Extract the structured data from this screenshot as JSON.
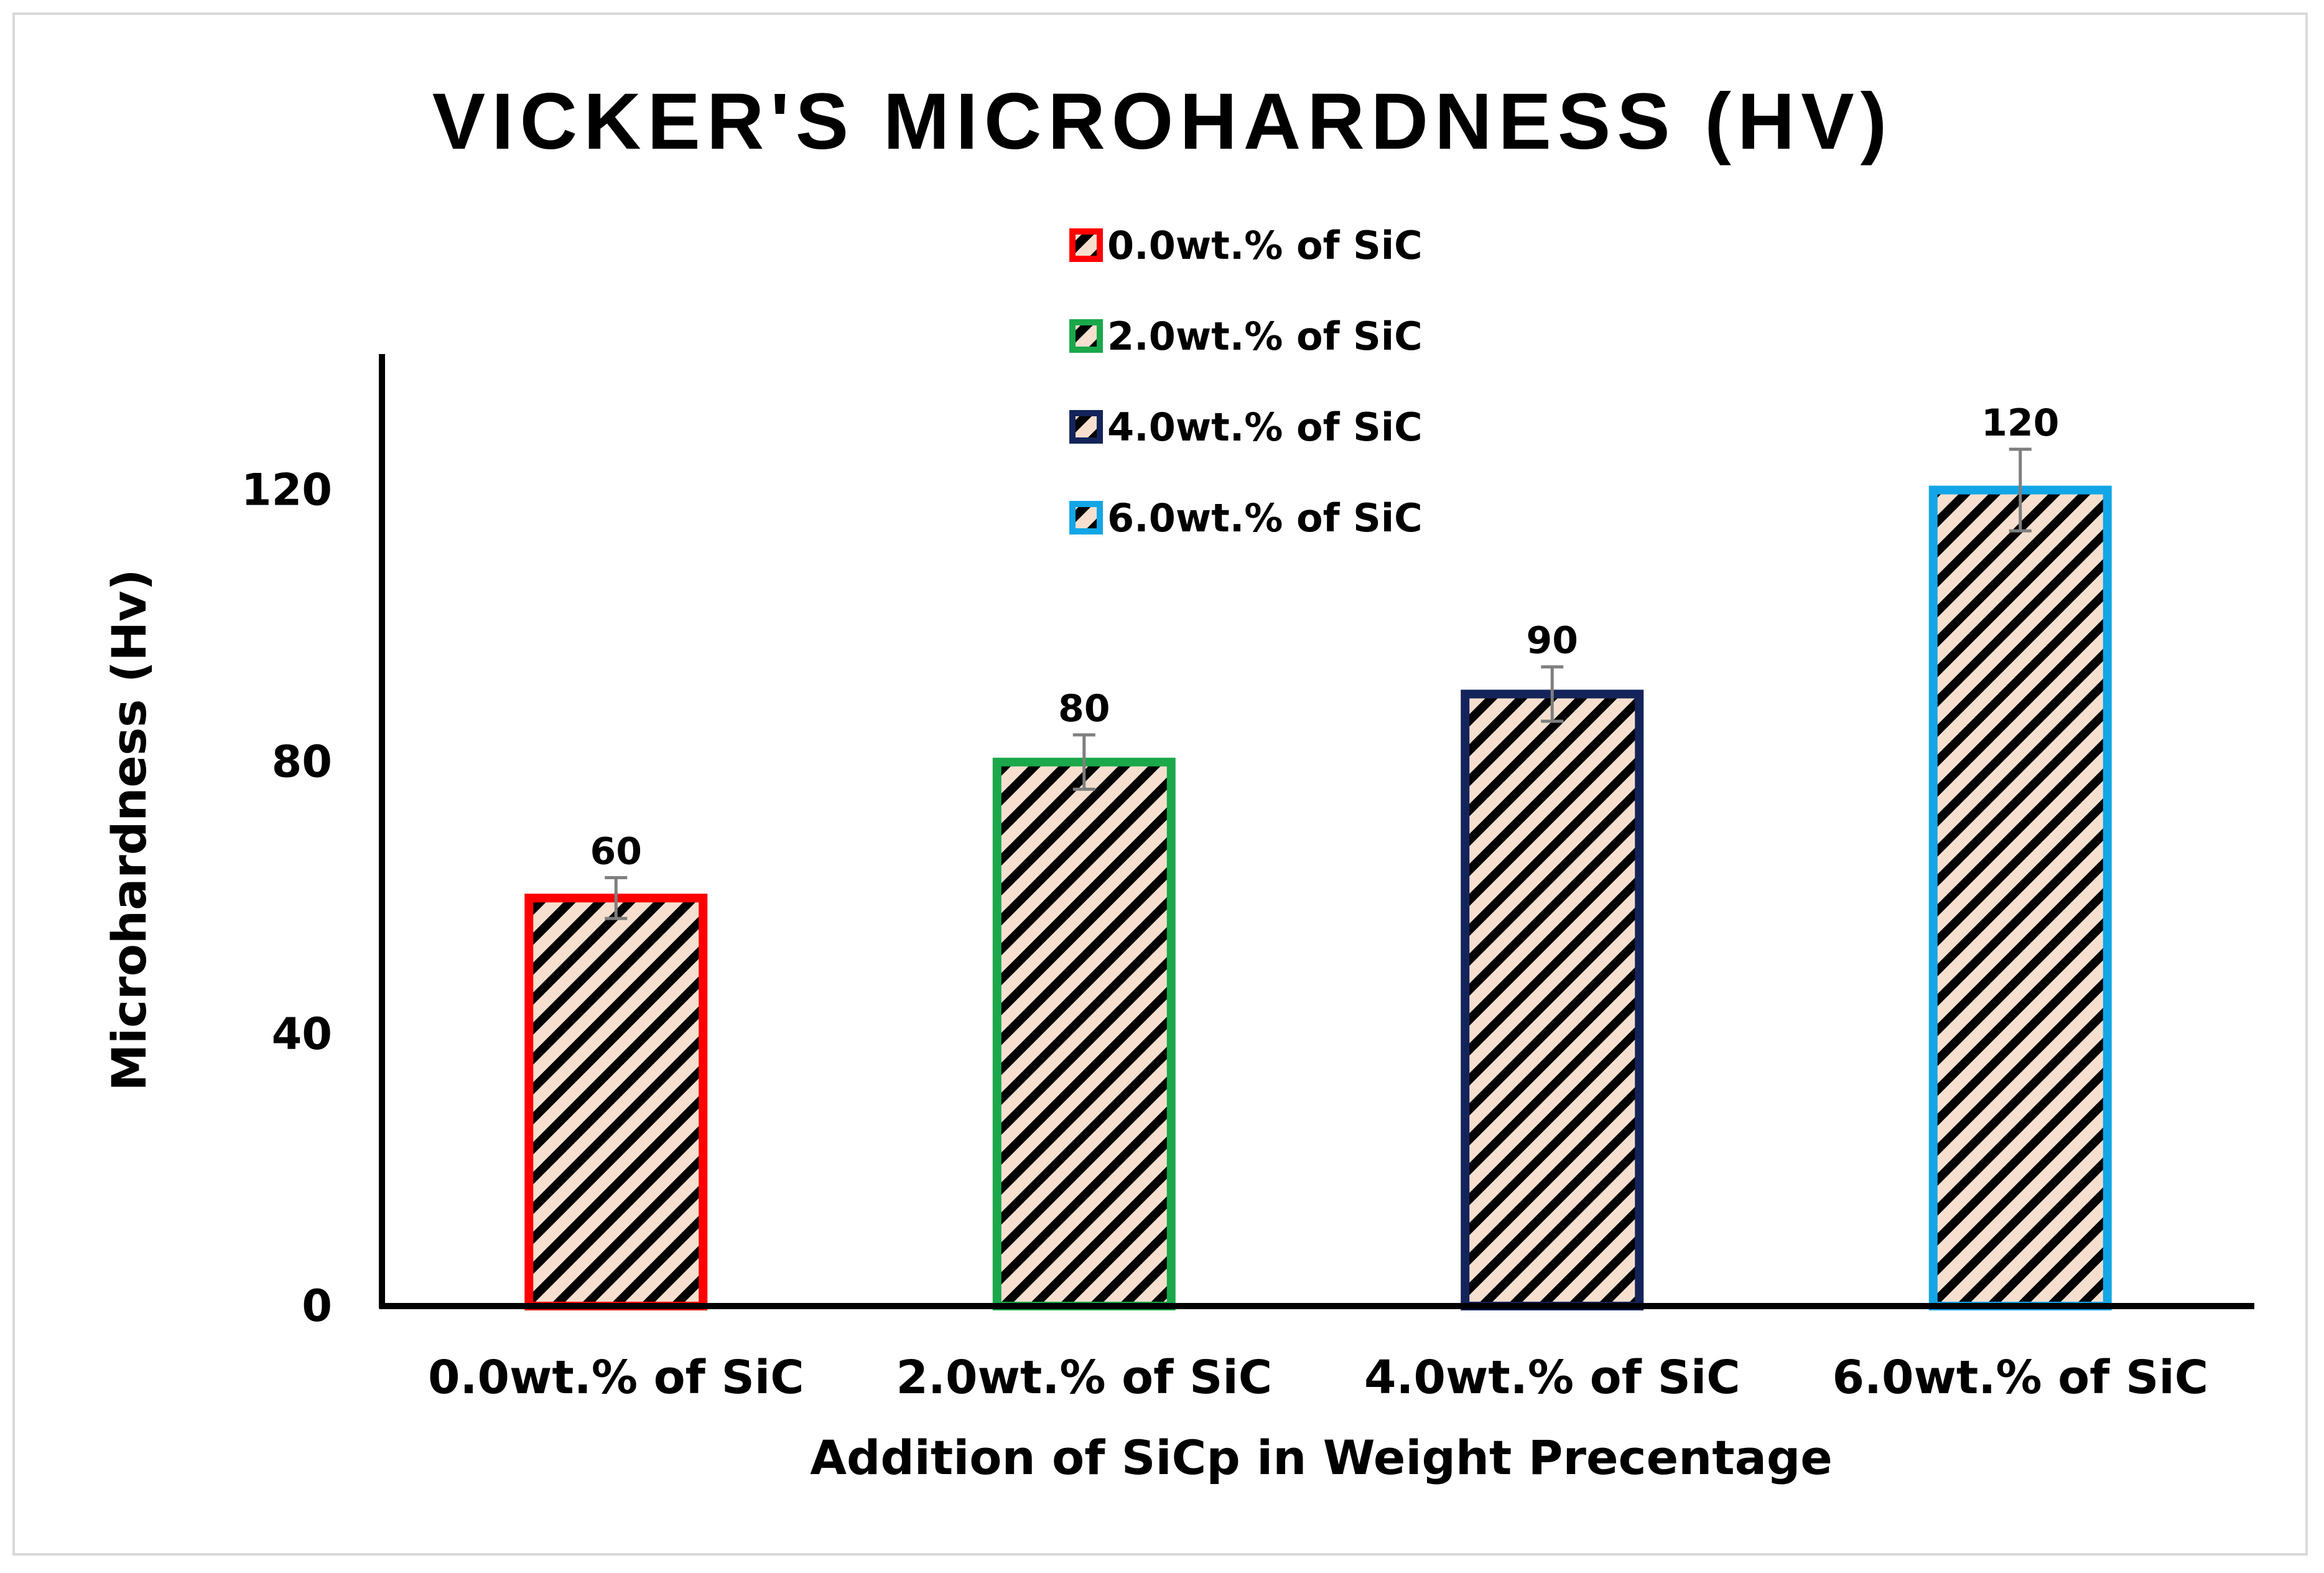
{
  "chart_data": {
    "type": "bar",
    "title": "VICKER'S MICROHARDNESS (HV)",
    "xlabel": "Addition of SiCp in Weight Precentage",
    "ylabel": "Microhardness (Hv)",
    "ylim": [
      0,
      140
    ],
    "yticks": [
      0,
      40,
      80,
      120
    ],
    "categories": [
      "0.0wt.% of SiC",
      "2.0wt.% of SiC",
      "4.0wt.% of SiC",
      "6.0wt.% of SiC"
    ],
    "values": [
      60,
      80,
      90,
      120
    ],
    "value_labels": [
      "60",
      "80",
      "90",
      "120"
    ],
    "errors": [
      3,
      4,
      4,
      6
    ],
    "bar_colors": [
      "#ff0000",
      "#1aa84a",
      "#14245a",
      "#12a6e6"
    ],
    "bar_fill": "#f6dfce",
    "hatch_color": "#000000",
    "error_bar_color": "#7f7f7f",
    "legend": {
      "position": "top-center",
      "entries": [
        "0.0wt.% of SiC",
        "2.0wt.% of SiC",
        "4.0wt.% of SiC",
        "6.0wt.% of SiC"
      ]
    },
    "grid": false
  }
}
